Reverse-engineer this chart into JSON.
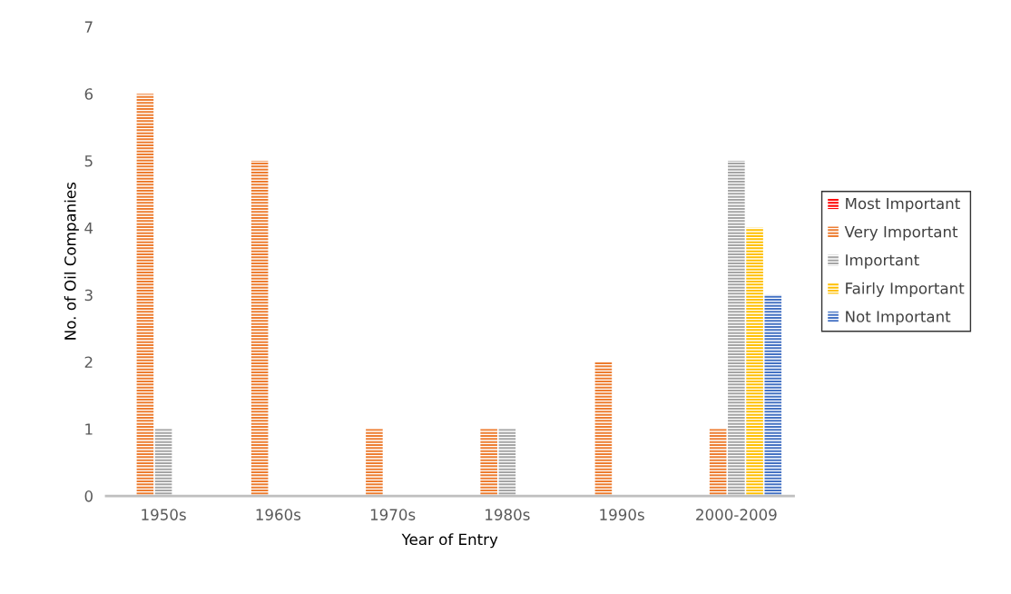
{
  "chart_data": {
    "type": "bar",
    "xlabel": "Year of Entry",
    "ylabel": "No. of Oil Companies",
    "categories": [
      "1950s",
      "1960s",
      "1970s",
      "1980s",
      "1990s",
      "2000-2009"
    ],
    "series": [
      {
        "name": "Most Important",
        "color": "#ff0000",
        "values": [
          0,
          0,
          0,
          0,
          0,
          0
        ]
      },
      {
        "name": "Very Important",
        "color": "#ed7d31",
        "values": [
          6,
          5,
          1,
          1,
          2,
          1
        ]
      },
      {
        "name": "Important",
        "color": "#a5a5a5",
        "values": [
          1,
          0,
          0,
          1,
          0,
          5
        ]
      },
      {
        "name": "Fairly Important",
        "color": "#ffc000",
        "values": [
          0,
          0,
          0,
          0,
          0,
          4
        ]
      },
      {
        "name": "Not Important",
        "color": "#4472c4",
        "values": [
          0,
          0,
          0,
          0,
          0,
          3
        ]
      }
    ],
    "ylim": [
      0,
      7
    ],
    "yticks": [
      0,
      1,
      2,
      3,
      4,
      5,
      6,
      7
    ],
    "grid": false,
    "legend": "right"
  }
}
